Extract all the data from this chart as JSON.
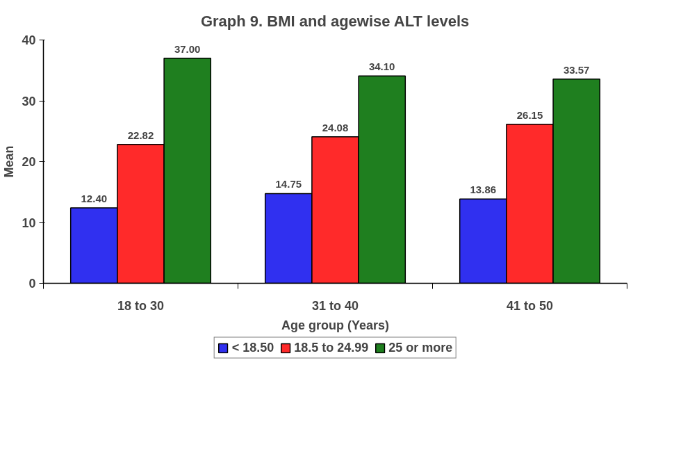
{
  "chart_data": {
    "type": "bar",
    "title": "Graph 9. BMI and agewise ALT levels",
    "xlabel": "Age group (Years)",
    "ylabel": "Mean",
    "categories": [
      "18 to 30",
      "31 to 40",
      "41 to 50"
    ],
    "series": [
      {
        "name": "< 18.50",
        "color": "#3030f0",
        "values": [
          12.4,
          14.75,
          13.86
        ],
        "value_labels": [
          "12.40",
          "14.75",
          "13.86"
        ]
      },
      {
        "name": "18.5 to 24.99",
        "color": "#ff2a2a",
        "values": [
          22.82,
          24.08,
          26.15
        ],
        "value_labels": [
          "22.82",
          "24.08",
          "26.15"
        ]
      },
      {
        "name": "25 or more",
        "color": "#1f7f1f",
        "values": [
          37.0,
          34.1,
          33.57
        ],
        "value_labels": [
          "37.00",
          "34.10",
          "33.57"
        ]
      }
    ],
    "ylim": [
      0,
      40
    ],
    "yticks": [
      0,
      10,
      20,
      30,
      40
    ],
    "grid": false,
    "legend": "bottom"
  }
}
